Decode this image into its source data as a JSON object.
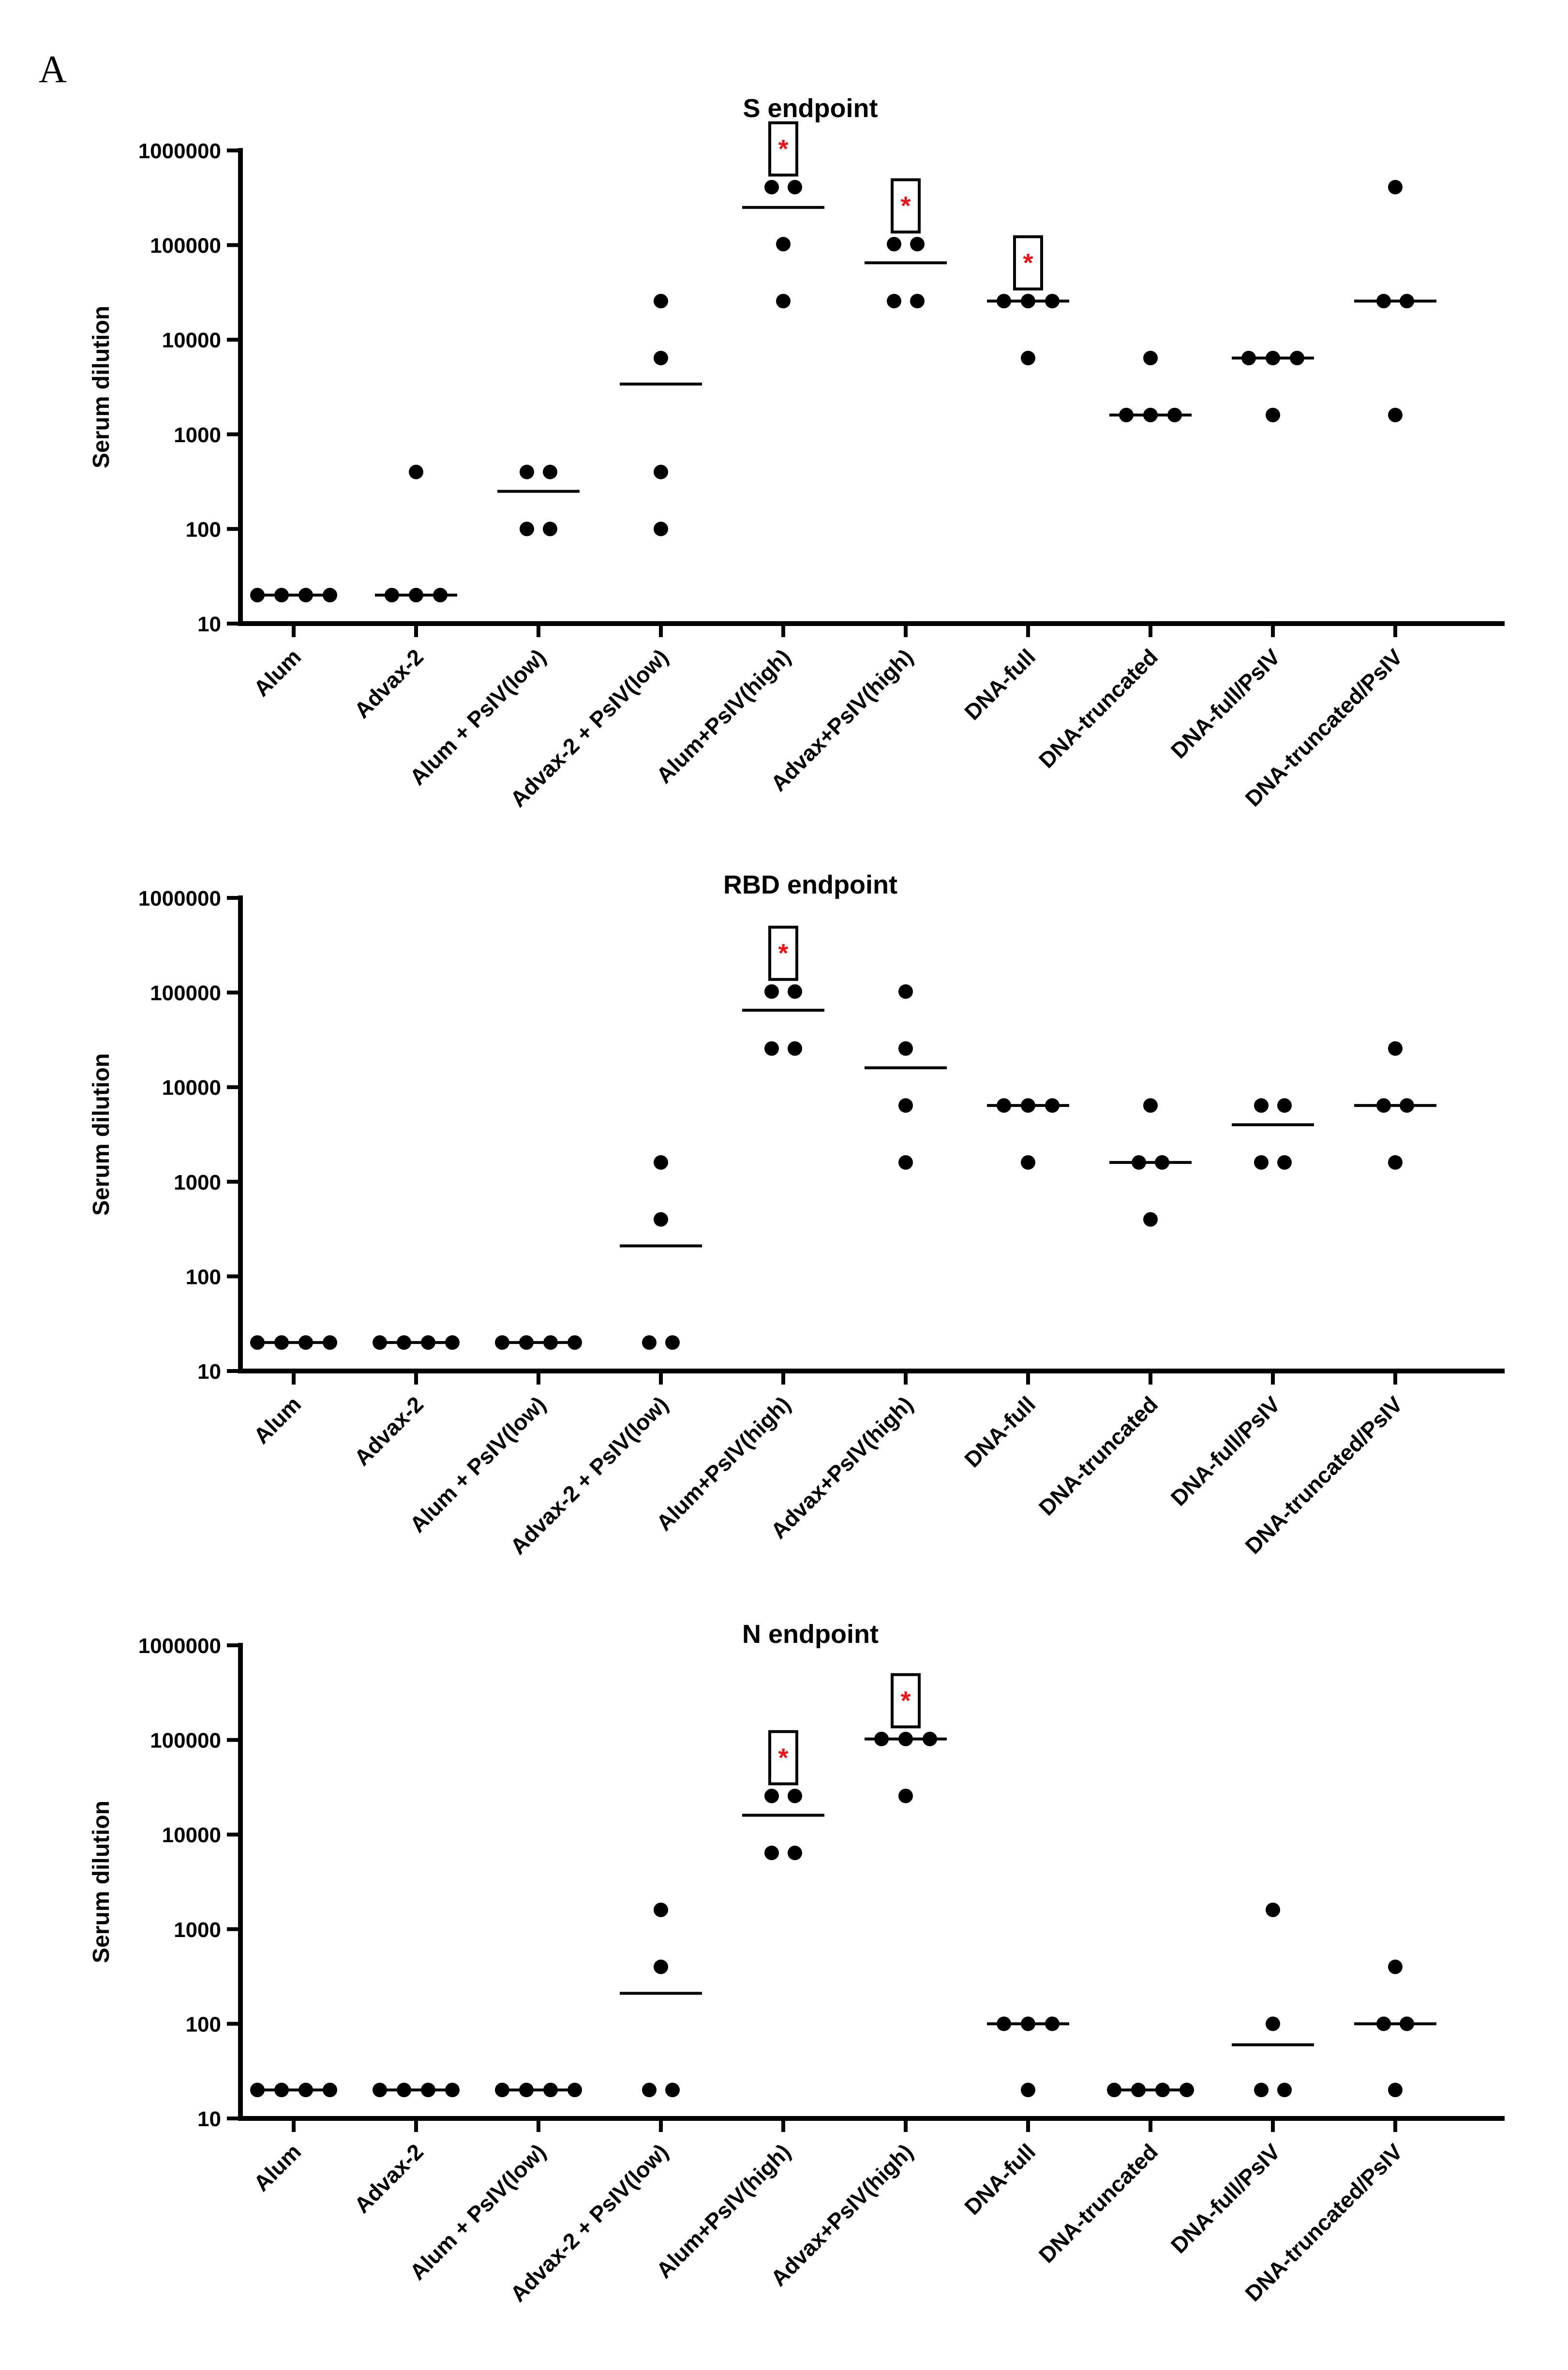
{
  "panel_label": "A",
  "chart_data": [
    {
      "type": "scatter",
      "title": "S endpoint",
      "ylabel": "Serum dilution",
      "xlabel": "",
      "yscale": "log",
      "ylim": [
        10,
        1000000
      ],
      "yticks": [
        "10",
        "100",
        "1000",
        "10000",
        "100000",
        "1000000"
      ],
      "categories": [
        "Alum",
        "Advax-2",
        "Alum + PsIV(low)",
        "Advax-2 + PsIV(low)",
        "Alum+PsIV(high)",
        "Advax+PsIV(high)",
        "DNA-full",
        "DNA-truncated",
        "DNA-full/PsIV",
        "DNA-truncated/PsIV"
      ],
      "points": [
        [
          20,
          20,
          20,
          20
        ],
        [
          400,
          20,
          20,
          20
        ],
        [
          400,
          400,
          100,
          100
        ],
        [
          25600,
          6400,
          400,
          100
        ],
        [
          409600,
          409600,
          102400,
          25600
        ],
        [
          102400,
          102400,
          25600,
          25600
        ],
        [
          25600,
          25600,
          25600,
          6400
        ],
        [
          6400,
          1600,
          1600,
          1600
        ],
        [
          6400,
          6400,
          6400,
          1600
        ],
        [
          409600,
          25600,
          25600,
          1600
        ]
      ],
      "means": [
        20,
        20,
        250,
        3400,
        250000,
        65000,
        25600,
        1600,
        6400,
        25600
      ],
      "significant": [
        false,
        false,
        false,
        false,
        true,
        true,
        true,
        false,
        false,
        false
      ],
      "significance_mark": "*"
    },
    {
      "type": "scatter",
      "title": "RBD endpoint",
      "ylabel": "Serum dilution",
      "xlabel": "",
      "yscale": "log",
      "ylim": [
        10,
        1000000
      ],
      "yticks": [
        "10",
        "100",
        "1000",
        "10000",
        "100000",
        "1000000"
      ],
      "categories": [
        "Alum",
        "Advax-2",
        "Alum + PsIV(low)",
        "Advax-2 + PsIV(low)",
        "Alum+PsIV(high)",
        "Advax+PsIV(high)",
        "DNA-full",
        "DNA-truncated",
        "DNA-full/PsIV",
        "DNA-truncated/PsIV"
      ],
      "points": [
        [
          20,
          20,
          20,
          20
        ],
        [
          20,
          20,
          20,
          20
        ],
        [
          20,
          20,
          20,
          20
        ],
        [
          1600,
          400,
          20,
          20
        ],
        [
          102400,
          102400,
          25600,
          25600
        ],
        [
          102400,
          25600,
          6400,
          1600
        ],
        [
          6400,
          6400,
          6400,
          1600
        ],
        [
          6400,
          1600,
          1600,
          400
        ],
        [
          6400,
          6400,
          1600,
          1600
        ],
        [
          25600,
          6400,
          6400,
          1600
        ]
      ],
      "means": [
        20,
        20,
        20,
        210,
        65000,
        16000,
        6400,
        1600,
        4000,
        6400
      ],
      "significant": [
        false,
        false,
        false,
        false,
        true,
        false,
        false,
        false,
        false,
        false
      ],
      "significance_mark": "*"
    },
    {
      "type": "scatter",
      "title": "N endpoint",
      "ylabel": "Serum dilution",
      "xlabel": "",
      "yscale": "log",
      "ylim": [
        10,
        1000000
      ],
      "yticks": [
        "10",
        "100",
        "1000",
        "10000",
        "100000",
        "1000000"
      ],
      "categories": [
        "Alum",
        "Advax-2",
        "Alum + PsIV(low)",
        "Advax-2 + PsIV(low)",
        "Alum+PsIV(high)",
        "Advax+PsIV(high)",
        "DNA-full",
        "DNA-truncated",
        "DNA-full/PsIV",
        "DNA-truncated/PsIV"
      ],
      "points": [
        [
          20,
          20,
          20,
          20
        ],
        [
          20,
          20,
          20,
          20
        ],
        [
          20,
          20,
          20,
          20
        ],
        [
          1600,
          400,
          20,
          20
        ],
        [
          25600,
          25600,
          6400,
          6400
        ],
        [
          102400,
          102400,
          102400,
          25600
        ],
        [
          100,
          100,
          100,
          20
        ],
        [
          20,
          20,
          20,
          20
        ],
        [
          1600,
          100,
          20,
          20
        ],
        [
          400,
          100,
          100,
          20
        ]
      ],
      "means": [
        20,
        20,
        20,
        210,
        16000,
        102400,
        100,
        20,
        60,
        100
      ],
      "significant": [
        false,
        false,
        false,
        false,
        true,
        true,
        false,
        false,
        false,
        false
      ],
      "significance_mark": "*"
    }
  ]
}
